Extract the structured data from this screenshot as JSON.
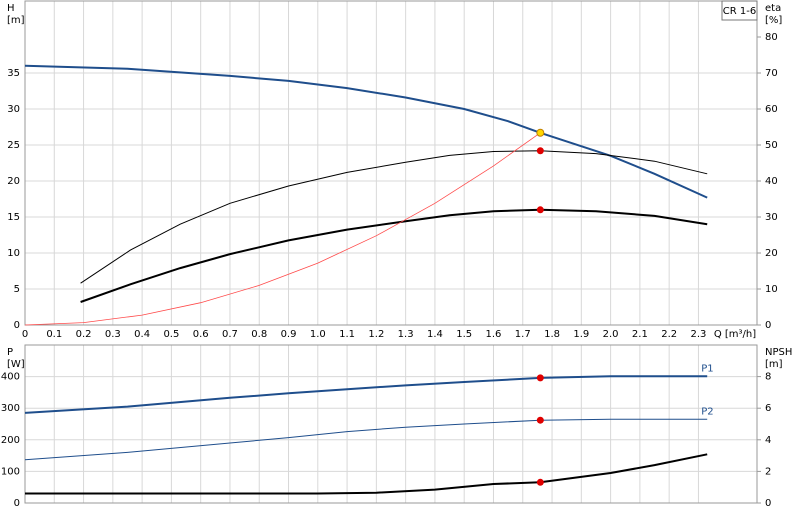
{
  "chart_data": [
    {
      "type": "line",
      "title": "CR 1-6",
      "ylabel": [
        "H",
        "[m]"
      ],
      "y2label": [
        "eta",
        "[%]"
      ],
      "xlabel": "Q [m³/h]",
      "xlim": [
        0,
        2.5
      ],
      "ylim": [
        0,
        45
      ],
      "y2lim": [
        0,
        90
      ],
      "xticks": [
        0,
        0.1,
        0.2,
        0.3,
        0.4,
        0.5,
        0.6,
        0.7,
        0.8,
        0.9,
        {
          "value": 1,
          "label": "1.0"
        },
        1.1,
        1.2,
        1.3,
        1.4,
        1.5,
        1.6,
        1.7,
        1.8,
        1.9,
        {
          "value": 2,
          "label": "2.0"
        },
        2.1,
        2.2,
        2.3
      ],
      "yticks": [
        0,
        5,
        10,
        15,
        20,
        25,
        30,
        35
      ],
      "y2ticks": [
        0,
        10,
        20,
        30,
        40,
        50,
        60,
        70,
        80
      ],
      "grid": true,
      "series": [
        {
          "color": "#1f4e8c",
          "width": 2,
          "axis": "y",
          "x": [
            0,
            0.35,
            0.7,
            0.9,
            1.1,
            1.3,
            1.5,
            1.65,
            1.76,
            2.0,
            2.15,
            2.33
          ],
          "values": [
            36,
            35.6,
            34.6,
            33.9,
            32.9,
            31.6,
            30.0,
            28.3,
            26.7,
            23.5,
            21.0,
            17.7
          ]
        },
        {
          "color": "#000000",
          "width": 1,
          "axis": "y2",
          "x": [
            0.19,
            0.36,
            0.53,
            0.7,
            0.9,
            1.1,
            1.3,
            1.45,
            1.6,
            1.76,
            1.95,
            2.15,
            2.33
          ],
          "values": [
            11.6,
            20.8,
            28.0,
            33.8,
            38.6,
            42.4,
            45.2,
            47.1,
            48.2,
            48.4,
            47.6,
            45.5,
            42.0
          ]
        },
        {
          "color": "#000000",
          "width": 2,
          "axis": "y2",
          "x": [
            0.19,
            0.36,
            0.53,
            0.7,
            0.9,
            1.1,
            1.3,
            1.45,
            1.6,
            1.76,
            1.95,
            2.15,
            2.33
          ],
          "values": [
            6.4,
            11.3,
            15.8,
            19.7,
            23.5,
            26.5,
            28.8,
            30.5,
            31.6,
            32.0,
            31.6,
            30.3,
            28.0
          ]
        },
        {
          "color": "#ff4a4a",
          "width": 0.8,
          "axis": "y",
          "x": [
            0,
            0.2,
            0.4,
            0.6,
            0.8,
            1.0,
            1.2,
            1.4,
            1.6,
            1.76
          ],
          "values": [
            0,
            0.34,
            1.38,
            3.1,
            5.5,
            8.6,
            12.4,
            16.9,
            22.1,
            26.7
          ]
        },
        {
          "color": "#ffd700",
          "mode": "markers",
          "axis": "y",
          "x": [
            1.76
          ],
          "values": [
            26.7
          ]
        },
        {
          "color": "#e00000",
          "mode": "markers",
          "axis": "y2",
          "x": [
            1.76,
            1.76
          ],
          "values": [
            48.4,
            32.0
          ]
        }
      ]
    },
    {
      "type": "line",
      "ylabel": [
        "P",
        "[W]"
      ],
      "y2label": [
        "NPSH",
        "[m]"
      ],
      "xlim": [
        0,
        2.5
      ],
      "ylim": [
        0,
        500
      ],
      "y2lim": [
        0,
        10
      ],
      "xticks": [
        0,
        0.1,
        0.2,
        0.3,
        0.4,
        0.5,
        0.6,
        0.7,
        0.8,
        0.9,
        1,
        1.1,
        1.2,
        1.3,
        1.4,
        1.5,
        1.6,
        1.7,
        1.8,
        1.9,
        2,
        2.1,
        2.2,
        2.3
      ],
      "yticks": [
        0,
        100,
        200,
        300,
        400
      ],
      "y2ticks": [
        0,
        2,
        4,
        6,
        8
      ],
      "grid": true,
      "series": [
        {
          "name": "P1",
          "color": "#1f4e8c",
          "width": 2,
          "axis": "y",
          "x": [
            0,
            0.35,
            0.7,
            0.9,
            1.1,
            1.3,
            1.5,
            1.76,
            2.0,
            2.33
          ],
          "values": [
            285,
            305,
            333,
            347,
            360,
            372,
            383,
            396,
            401,
            401
          ]
        },
        {
          "name": "P2",
          "color": "#1f4e8c",
          "width": 1,
          "axis": "y",
          "x": [
            0,
            0.35,
            0.7,
            0.9,
            1.1,
            1.3,
            1.5,
            1.76,
            2.0,
            2.33
          ],
          "values": [
            137,
            160,
            190,
            207,
            226,
            240,
            250,
            262,
            265,
            265
          ]
        },
        {
          "color": "#000000",
          "width": 2,
          "axis": "y2",
          "x": [
            0,
            0.7,
            1.0,
            1.2,
            1.4,
            1.6,
            1.76,
            2.0,
            2.15,
            2.33
          ],
          "values": [
            0.6,
            0.6,
            0.6,
            0.65,
            0.85,
            1.2,
            1.31,
            1.9,
            2.4,
            3.08
          ]
        },
        {
          "color": "#e00000",
          "mode": "markers",
          "axis": "y",
          "x": [
            1.76,
            1.76
          ],
          "values": [
            396,
            262
          ]
        },
        {
          "color": "#e00000",
          "mode": "markers",
          "axis": "y2",
          "x": [
            1.76
          ],
          "values": [
            1.31
          ]
        }
      ]
    }
  ]
}
